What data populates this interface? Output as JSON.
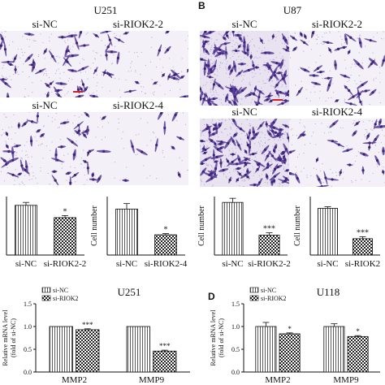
{
  "panels": {
    "A": {
      "letter": "",
      "title": "U251",
      "labels": {
        "tl": "si-NC",
        "tr": "si-RIOK2-2",
        "bl": "si-NC",
        "br": "si-RIOK2-4"
      }
    },
    "B": {
      "letter": "B",
      "title": "U87",
      "labels": {
        "tl": "si-NC",
        "tr": "si-RIOK2-2",
        "bl": "si-NC",
        "br": "si-RIOK2-4"
      }
    },
    "D": {
      "letter": "D"
    }
  },
  "colors": {
    "cell_stain": "#5a3e9a",
    "background_light": "#f3f0f7",
    "background_dense": "#e8e2f1",
    "scale_bar": "#cc2222"
  },
  "chart_data": [
    {
      "id": "u251-riok2-2",
      "type": "bar",
      "title": "",
      "xlabel": "",
      "ylabel": "",
      "categories": [
        "si-NC",
        "si-RIOK2-2"
      ],
      "values": [
        170,
        128
      ],
      "errors": [
        10,
        7
      ],
      "ylim": [
        0,
        200
      ],
      "yticks": [],
      "patterns": [
        "hatch",
        "check"
      ],
      "significance": [
        null,
        "*"
      ]
    },
    {
      "id": "u251-riok2-4",
      "type": "bar",
      "title": "",
      "xlabel": "",
      "ylabel": "Cell number",
      "categories": [
        "si-NC",
        "si-RIOK2-4"
      ],
      "values": [
        118,
        52
      ],
      "errors": [
        14,
        3
      ],
      "ylim": [
        0,
        150
      ],
      "yticks": [],
      "patterns": [
        "hatch",
        "check"
      ],
      "significance": [
        null,
        "*"
      ]
    },
    {
      "id": "u87-riok2-2",
      "type": "bar",
      "title": "",
      "xlabel": "",
      "ylabel": "Cell number",
      "categories": [
        "si-NC",
        "si-RIOK2-2"
      ],
      "values": [
        90,
        34
      ],
      "errors": [
        7,
        4
      ],
      "ylim": [
        0,
        100
      ],
      "yticks": [],
      "patterns": [
        "hatch",
        "check"
      ],
      "significance": [
        null,
        "***"
      ]
    },
    {
      "id": "u87-riok2-4",
      "type": "bar",
      "title": "",
      "xlabel": "",
      "ylabel": "Cell number",
      "categories": [
        "si-NC",
        "si-RIOK2"
      ],
      "values": [
        120,
        42
      ],
      "errors": [
        4,
        5
      ],
      "ylim": [
        0,
        150
      ],
      "yticks": [],
      "patterns": [
        "hatch",
        "check"
      ],
      "significance": [
        null,
        "***"
      ]
    },
    {
      "id": "u251-mmp",
      "type": "bar",
      "title": "U251",
      "xlabel": "",
      "ylabel": "Relative mRNA level",
      "ylabel2": "(fold of si-NC)",
      "categories": [
        "MMP2",
        "MMP9"
      ],
      "series": [
        {
          "name": "si-NC",
          "values": [
            1.0,
            1.0
          ],
          "errors": [
            0,
            0
          ]
        },
        {
          "name": "si-RIOK2",
          "values": [
            0.93,
            0.46
          ],
          "errors": [
            0.02,
            0.02
          ]
        }
      ],
      "ylim": [
        0,
        1.5
      ],
      "yticks": [
        "0.0",
        "0.5",
        "1.0",
        "1.5"
      ],
      "patterns": [
        "hatch",
        "check"
      ],
      "significance": [
        [
          null,
          "***"
        ],
        [
          null,
          "***"
        ]
      ]
    },
    {
      "id": "u118-mmp",
      "type": "bar",
      "title": "U118",
      "xlabel": "",
      "ylabel": "Relative mRNA level",
      "ylabel2": "(fold of si-NC)",
      "categories": [
        "MMP2",
        "MMP9"
      ],
      "series": [
        {
          "name": "si-NC",
          "values": [
            1.0,
            1.0
          ],
          "errors": [
            0.09,
            0.06
          ]
        },
        {
          "name": "si-RIOK2",
          "values": [
            0.84,
            0.78
          ],
          "errors": [
            0.02,
            0.02
          ]
        }
      ],
      "ylim": [
        0,
        1.5
      ],
      "yticks": [
        "0.0",
        "0.5",
        "1.0",
        "1.5"
      ],
      "patterns": [
        "hatch",
        "check"
      ],
      "significance": [
        [
          null,
          "*"
        ],
        [
          null,
          "*"
        ]
      ]
    }
  ]
}
